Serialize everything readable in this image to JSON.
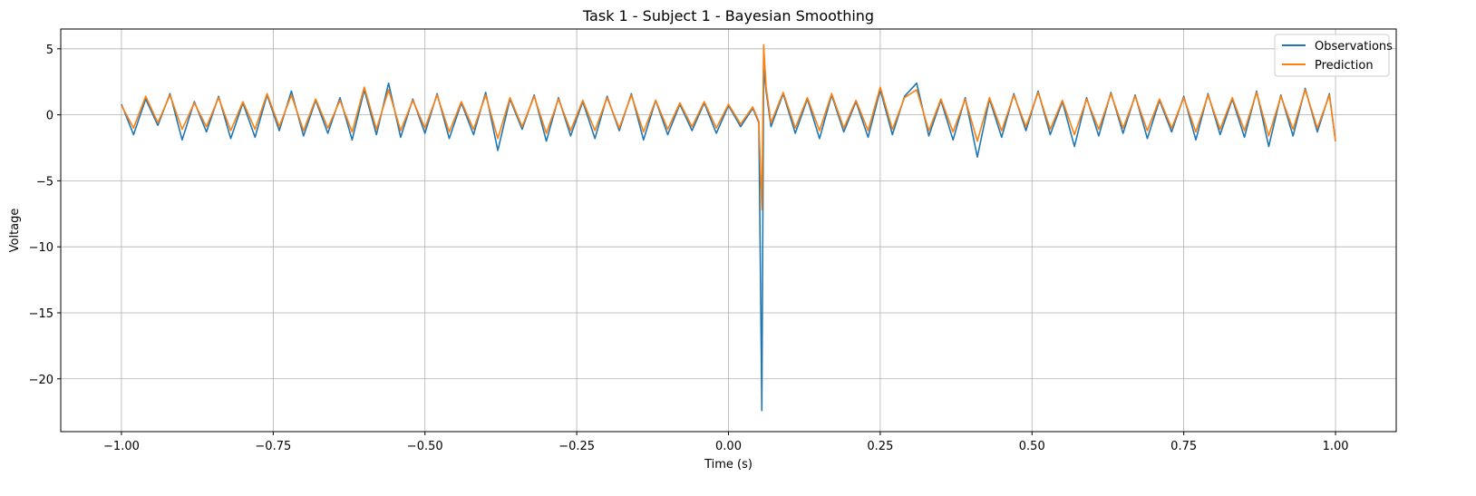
{
  "chart_data": {
    "type": "line",
    "title": "Task 1 - Subject 1 - Bayesian Smoothing",
    "xlabel": "Time (s)",
    "ylabel": "Voltage",
    "xlim": [
      -1.1,
      1.1
    ],
    "ylim": [
      -24,
      6.5
    ],
    "xticks": [
      -1.0,
      -0.75,
      -0.5,
      -0.25,
      0.0,
      0.25,
      0.5,
      0.75,
      1.0
    ],
    "xtick_labels": [
      "−1.00",
      "−0.75",
      "−0.50",
      "−0.25",
      "0.00",
      "0.25",
      "0.50",
      "0.75",
      "1.00"
    ],
    "yticks": [
      5,
      0,
      -5,
      -10,
      -15,
      -20
    ],
    "ytick_labels": [
      "5",
      "0",
      "−5",
      "−10",
      "−15",
      "−20"
    ],
    "grid": true,
    "legend_position": "top-right",
    "series": [
      {
        "name": "Observations",
        "color": "#1f77b4",
        "x": [
          -1.0,
          -0.98,
          -0.96,
          -0.94,
          -0.92,
          -0.9,
          -0.88,
          -0.86,
          -0.84,
          -0.82,
          -0.8,
          -0.78,
          -0.76,
          -0.74,
          -0.72,
          -0.7,
          -0.68,
          -0.66,
          -0.64,
          -0.62,
          -0.6,
          -0.58,
          -0.56,
          -0.54,
          -0.52,
          -0.5,
          -0.48,
          -0.46,
          -0.44,
          -0.42,
          -0.4,
          -0.38,
          -0.36,
          -0.34,
          -0.32,
          -0.3,
          -0.28,
          -0.26,
          -0.24,
          -0.22,
          -0.2,
          -0.18,
          -0.16,
          -0.14,
          -0.12,
          -0.1,
          -0.08,
          -0.06,
          -0.04,
          -0.02,
          0.0,
          0.02,
          0.04,
          0.05,
          0.055,
          0.058,
          0.062,
          0.07,
          0.09,
          0.11,
          0.13,
          0.15,
          0.17,
          0.19,
          0.21,
          0.23,
          0.25,
          0.27,
          0.29,
          0.31,
          0.33,
          0.35,
          0.37,
          0.39,
          0.41,
          0.43,
          0.45,
          0.47,
          0.49,
          0.51,
          0.53,
          0.55,
          0.57,
          0.59,
          0.61,
          0.63,
          0.65,
          0.67,
          0.69,
          0.71,
          0.73,
          0.75,
          0.77,
          0.79,
          0.81,
          0.83,
          0.85,
          0.87,
          0.89,
          0.91,
          0.93,
          0.95,
          0.97,
          0.99,
          1.0
        ],
        "y": [
          0.8,
          -1.5,
          1.2,
          -0.8,
          1.6,
          -1.9,
          1.0,
          -1.3,
          1.4,
          -1.8,
          0.9,
          -1.7,
          1.5,
          -1.2,
          1.8,
          -1.6,
          1.1,
          -1.4,
          1.3,
          -1.9,
          1.9,
          -1.5,
          2.4,
          -1.7,
          1.2,
          -1.4,
          1.6,
          -1.8,
          0.9,
          -1.5,
          1.7,
          -2.7,
          1.2,
          -1.1,
          1.5,
          -2.0,
          1.3,
          -1.6,
          1.0,
          -1.8,
          1.4,
          -1.2,
          1.6,
          -1.9,
          1.1,
          -1.5,
          0.8,
          -1.2,
          0.9,
          -1.4,
          0.7,
          -0.9,
          0.5,
          -0.6,
          -22.4,
          3.5,
          1.8,
          -0.9,
          1.6,
          -1.4,
          1.2,
          -1.8,
          1.5,
          -1.3,
          1.0,
          -1.7,
          1.9,
          -1.5,
          1.4,
          2.4,
          -1.6,
          1.1,
          -1.9,
          1.3,
          -3.2,
          1.2,
          -1.7,
          1.6,
          -1.2,
          1.8,
          -1.5,
          1.0,
          -2.4,
          1.3,
          -1.6,
          1.7,
          -1.4,
          1.5,
          -1.8,
          1.1,
          -1.3,
          1.4,
          -1.9,
          1.6,
          -1.5,
          1.2,
          -1.7,
          1.8,
          -2.4,
          1.5,
          -1.6,
          2.0,
          -1.3,
          1.6,
          -2.0
        ]
      },
      {
        "name": "Prediction",
        "color": "#ff7f0e",
        "x": [
          -1.0,
          -0.98,
          -0.96,
          -0.94,
          -0.92,
          -0.9,
          -0.88,
          -0.86,
          -0.84,
          -0.82,
          -0.8,
          -0.78,
          -0.76,
          -0.74,
          -0.72,
          -0.7,
          -0.68,
          -0.66,
          -0.64,
          -0.62,
          -0.6,
          -0.58,
          -0.56,
          -0.54,
          -0.52,
          -0.5,
          -0.48,
          -0.46,
          -0.44,
          -0.42,
          -0.4,
          -0.38,
          -0.36,
          -0.34,
          -0.32,
          -0.3,
          -0.28,
          -0.26,
          -0.24,
          -0.22,
          -0.2,
          -0.18,
          -0.16,
          -0.14,
          -0.12,
          -0.1,
          -0.08,
          -0.06,
          -0.04,
          -0.02,
          0.0,
          0.02,
          0.04,
          0.05,
          0.055,
          0.058,
          0.062,
          0.07,
          0.09,
          0.11,
          0.13,
          0.15,
          0.17,
          0.19,
          0.21,
          0.23,
          0.25,
          0.27,
          0.29,
          0.31,
          0.33,
          0.35,
          0.37,
          0.39,
          0.41,
          0.43,
          0.45,
          0.47,
          0.49,
          0.51,
          0.53,
          0.55,
          0.57,
          0.59,
          0.61,
          0.63,
          0.65,
          0.67,
          0.69,
          0.71,
          0.73,
          0.75,
          0.77,
          0.79,
          0.81,
          0.83,
          0.85,
          0.87,
          0.89,
          0.91,
          0.93,
          0.95,
          0.97,
          0.99,
          1.0
        ],
        "y": [
          0.7,
          -1.0,
          1.4,
          -0.6,
          1.5,
          -1.1,
          0.9,
          -0.9,
          1.3,
          -1.2,
          1.0,
          -1.1,
          1.6,
          -0.9,
          1.5,
          -1.2,
          1.2,
          -1.0,
          1.1,
          -1.3,
          2.1,
          -1.1,
          1.9,
          -1.2,
          1.1,
          -1.0,
          1.5,
          -1.3,
          1.0,
          -1.1,
          1.5,
          -1.8,
          1.3,
          -0.9,
          1.4,
          -1.4,
          1.2,
          -1.2,
          1.1,
          -1.2,
          1.3,
          -1.0,
          1.5,
          -1.3,
          1.1,
          -1.1,
          0.9,
          -0.9,
          1.0,
          -1.0,
          0.8,
          -0.7,
          0.6,
          -0.5,
          -7.2,
          5.3,
          2.1,
          -0.6,
          1.7,
          -1.0,
          1.3,
          -1.2,
          1.6,
          -1.0,
          1.1,
          -1.2,
          2.1,
          -1.1,
          1.3,
          1.9,
          -1.2,
          1.2,
          -1.3,
          1.2,
          -2.0,
          1.3,
          -1.2,
          1.5,
          -0.9,
          1.7,
          -1.1,
          1.1,
          -1.5,
          1.2,
          -1.1,
          1.6,
          -1.0,
          1.4,
          -1.2,
          1.2,
          -1.0,
          1.3,
          -1.3,
          1.5,
          -1.1,
          1.3,
          -1.2,
          1.7,
          -1.6,
          1.4,
          -1.1,
          1.9,
          -1.0,
          1.5,
          -2.0
        ]
      }
    ]
  }
}
